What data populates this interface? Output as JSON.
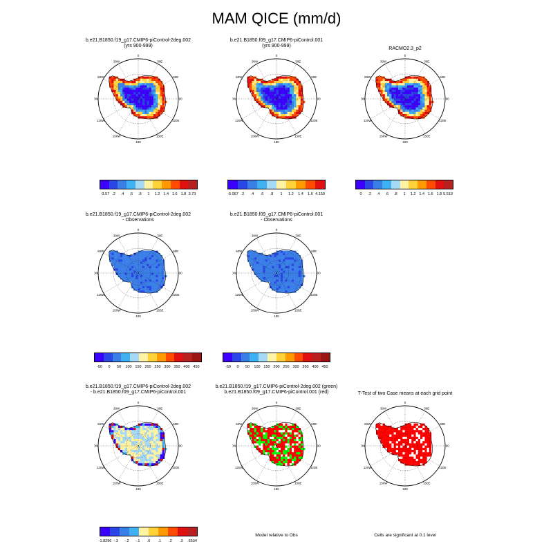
{
  "title": "MAM QICE (mm/d)",
  "panels": [
    {
      "id": "p1",
      "line1": "b.e21.B1850.f19_g17.CMIP6-piControl-2deg.002",
      "line2": "(yrs 900-999)",
      "cmap": "abs"
    },
    {
      "id": "p2",
      "line1": "b.e21.B1850.f09_g17.CMIP6-piControl.001",
      "line2": "(yrs 900-999)",
      "cmap": "abs"
    },
    {
      "id": "p3",
      "line1": "RACMO2.3_p2",
      "line2": "",
      "cmap": "abs"
    },
    {
      "id": "p4",
      "line1": "b.e21.B1850.f19_g17.CMIP6-piControl-2deg.002",
      "line2": "- Observations",
      "cmap": "blue"
    },
    {
      "id": "p5",
      "line1": "b.e21.B1850.f09_g17.CMIP6-piControl.001",
      "line2": "- Observations",
      "cmap": "blue"
    },
    {
      "id": "p6",
      "line1": "b.e21.B1850.f19_g17.CMIP6-piControl-2deg.002",
      "line2": "- b.e21.B1850.f09_g17.CMIP6-piControl.001",
      "cmap": "diff"
    },
    {
      "id": "p7",
      "line1": "b.e21.B1850.f19_g17.CMIP6-piControl-2deg.002 (green)",
      "line2": "b.e21.B1850.f09_g17.CMIP6-piControl.001 (red)",
      "cmap": "rg"
    },
    {
      "id": "p8",
      "line1": "T-Test of two Case means at each grid point",
      "line2": "",
      "cmap": "red"
    }
  ],
  "grid_labels": [
    "0",
    "30E",
    "60E",
    "90E",
    "120E",
    "150E",
    "180",
    "150W",
    "120W",
    "90W",
    "60W",
    "30W"
  ],
  "colors": [
    "#3c00ff",
    "#2a46e6",
    "#3a7ee8",
    "#3fb0f0",
    "#a6d9f5",
    "#fff3a3",
    "#ffd23a",
    "#ff9a00",
    "#ff4a00",
    "#e01010",
    "#b82020"
  ],
  "colorbars": {
    "cb1": [
      "-3.57",
      ".2",
      ".4",
      ".6",
      ".8",
      "1",
      "1.2",
      "1.4",
      "1.6",
      "1.8",
      "3.73"
    ],
    "cb2": [
      "-5.067",
      ".2",
      ".4",
      ".6",
      ".8",
      "1",
      "1.2",
      "1.4",
      "1.6",
      "4.159"
    ],
    "cb3": [
      "0",
      ".2",
      ".4",
      ".6",
      ".8",
      "1",
      "1.2",
      "1.4",
      "1.6",
      "1.8",
      "5.519"
    ],
    "cb4": [
      "-50",
      "0",
      "50",
      "100",
      "150",
      "200",
      "250",
      "300",
      "350",
      "400",
      "450"
    ],
    "cb5": [
      "-50",
      "0",
      "50",
      "100",
      "150",
      "200",
      "250",
      "300",
      "350",
      "400",
      "450"
    ],
    "cb6": [
      "-1.8296",
      "-.3",
      "-.2",
      "-.1",
      ".0",
      ".1",
      ".2",
      ".3",
      ".6534"
    ]
  },
  "notes": {
    "model_rel_obs": "Model relative to Obs",
    "significant": "Cells are significant at 0.1 level"
  }
}
